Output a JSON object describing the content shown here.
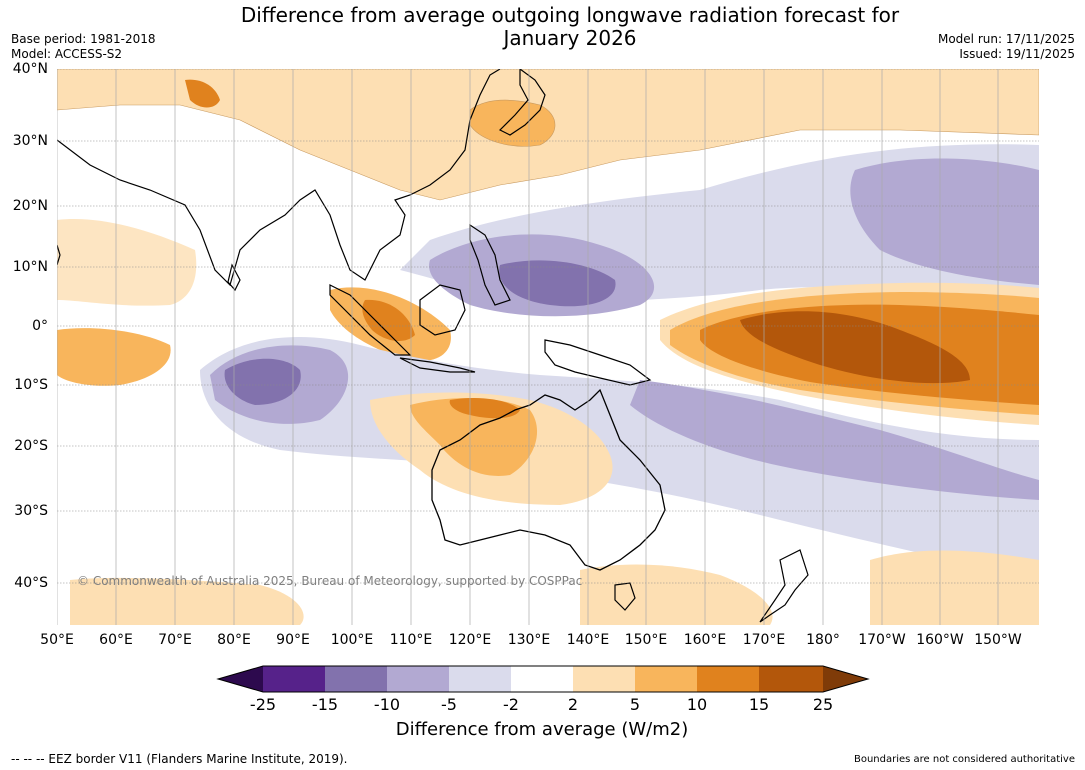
{
  "header": {
    "title_line1": "Difference from average outgoing longwave radiation forecast for",
    "title_line2": "January 2026",
    "base_period": "Base period: 1981-2018",
    "model": "Model: ACCESS-S2",
    "model_run": "Model run: 17/11/2025",
    "issued": "Issued: 19/11/2025"
  },
  "map": {
    "lat_labels": [
      "40°N",
      "30°N",
      "20°N",
      "10°N",
      "0°",
      "10°S",
      "20°S",
      "30°S",
      "40°S"
    ],
    "lon_labels": [
      "50°E",
      "60°E",
      "70°E",
      "80°E",
      "90°E",
      "100°E",
      "110°E",
      "120°E",
      "130°E",
      "140°E",
      "150°E",
      "160°E",
      "170°E",
      "180°",
      "170°W",
      "160°W",
      "150°W"
    ],
    "copyright": "© Commonwealth of Australia 2025, Bureau of Meteorology, supported by COSPPac"
  },
  "colorbar": {
    "colors": [
      "#2d0a4e",
      "#56228a",
      "#8272ad",
      "#b2a9d2",
      "#dadbec",
      "#ffffff",
      "#fddfb3",
      "#f8b55c",
      "#e0821e",
      "#b3570b",
      "#7f3b08"
    ],
    "tick_labels": [
      "-25",
      "-15",
      "-10",
      "-5",
      "-2",
      "2",
      "5",
      "10",
      "15",
      "25"
    ],
    "title": "Difference from average (W/m2)"
  },
  "footer": {
    "eez": "-- -- -- EEZ border V11 (Flanders Marine Institute, 2019).",
    "disclaimer": "Boundaries are not considered authoritative"
  }
}
